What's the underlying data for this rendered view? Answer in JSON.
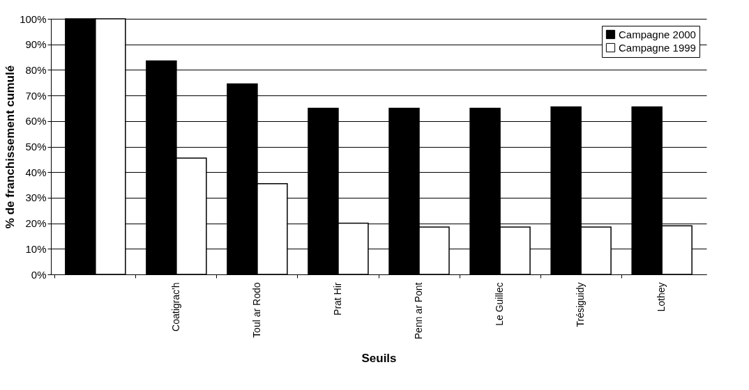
{
  "chart_data": {
    "type": "bar",
    "xlabel": "Seuils",
    "ylabel": "% de franchissement cumulé",
    "categories": [
      null,
      "Coatigrac'h",
      "Toul ar Rodo",
      "Prat Hir",
      "Penn ar Pont",
      "Le Guillec",
      "Trésiguidy",
      "Lothey"
    ],
    "series": [
      {
        "name": "Campagne 2000",
        "color": "#000000",
        "values": [
          100,
          83.5,
          74.5,
          65,
          65,
          65,
          65.5,
          65.5
        ]
      },
      {
        "name": "Campagne 1999",
        "color": "#ffffff",
        "values": [
          100,
          45.5,
          35.5,
          20,
          18.5,
          18.5,
          18.5,
          19
        ]
      }
    ],
    "ylim": [
      0,
      100
    ],
    "yticks": [
      {
        "value": 0,
        "label": "0%"
      },
      {
        "value": 10,
        "label": "10%"
      },
      {
        "value": 20,
        "label": "20%"
      },
      {
        "value": 30,
        "label": "30%"
      },
      {
        "value": 40,
        "label": "40%"
      },
      {
        "value": 50,
        "label": "50%"
      },
      {
        "value": 60,
        "label": "60%"
      },
      {
        "value": 70,
        "label": "70%"
      },
      {
        "value": 80,
        "label": "80%"
      },
      {
        "value": 90,
        "label": "90%"
      },
      {
        "value": 100,
        "label": "100%"
      }
    ],
    "grid": "y",
    "legend": "top right"
  }
}
